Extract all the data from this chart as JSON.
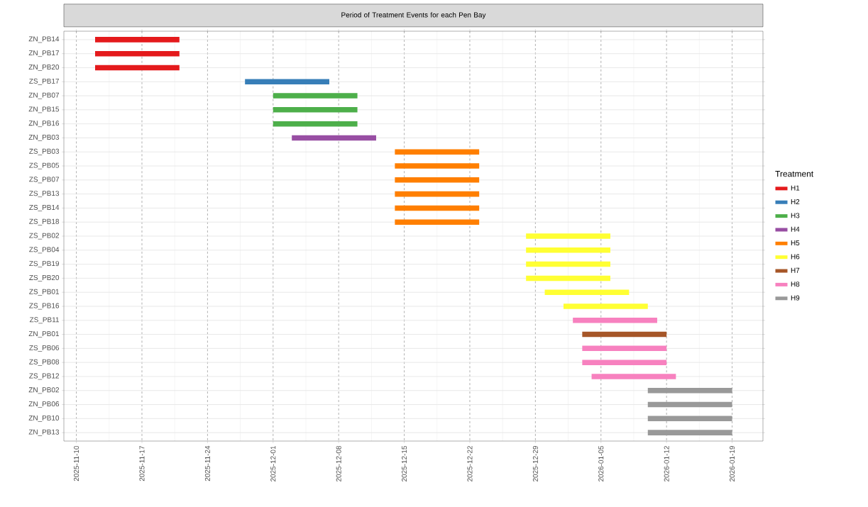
{
  "chart_data": {
    "type": "bar",
    "orientation": "horizontal",
    "title": "Period of Treatment Events for each Pen Bay",
    "legend_title": "Treatment",
    "legend": "right",
    "grid": true,
    "categories": [
      "ZN_PB14",
      "ZN_PB17",
      "ZN_PB20",
      "ZS_PB17",
      "ZN_PB07",
      "ZN_PB15",
      "ZN_PB16",
      "ZN_PB03",
      "ZS_PB03",
      "ZS_PB05",
      "ZS_PB07",
      "ZS_PB13",
      "ZS_PB14",
      "ZS_PB18",
      "ZS_PB02",
      "ZS_PB04",
      "ZS_PB19",
      "ZS_PB20",
      "ZS_PB01",
      "ZS_PB16",
      "ZS_PB11",
      "ZN_PB01",
      "ZS_PB06",
      "ZS_PB08",
      "ZS_PB12",
      "ZN_PB02",
      "ZN_PB06",
      "ZN_PB10",
      "ZN_PB13"
    ],
    "xlim": [
      "2025-11-08T16:00",
      "2026-01-22T07:00"
    ],
    "xticks": [
      "2025-11-10",
      "2025-11-17",
      "2025-11-24",
      "2025-12-01",
      "2025-12-08",
      "2025-12-15",
      "2025-12-22",
      "2025-12-29",
      "2026-01-05",
      "2026-01-12",
      "2026-01-19"
    ],
    "series": [
      {
        "name": "H1",
        "color": "#e41a1c",
        "values": [
          9,
          9,
          9,
          null,
          null,
          null,
          null,
          null,
          null,
          null,
          null,
          null,
          null,
          null,
          null,
          null,
          null,
          null,
          null,
          null,
          null,
          null,
          null,
          null,
          null,
          null,
          null,
          null,
          null
        ],
        "base": [
          20404,
          20404,
          20404,
          null,
          null,
          null,
          null,
          null,
          null,
          null,
          null,
          null,
          null,
          null,
          null,
          null,
          null,
          null,
          null,
          null,
          null,
          null,
          null,
          null,
          null,
          null,
          null,
          null,
          null
        ]
      },
      {
        "name": "H2",
        "color": "#377eb8",
        "values": [
          null,
          null,
          null,
          9,
          null,
          null,
          null,
          null,
          null,
          null,
          null,
          null,
          null,
          null,
          null,
          null,
          null,
          null,
          null,
          null,
          null,
          null,
          null,
          null,
          null,
          null,
          null,
          null,
          null
        ],
        "base": [
          null,
          null,
          null,
          20420,
          null,
          null,
          null,
          null,
          null,
          null,
          null,
          null,
          null,
          null,
          null,
          null,
          null,
          null,
          null,
          null,
          null,
          null,
          null,
          null,
          null,
          null,
          null,
          null,
          null
        ]
      },
      {
        "name": "H3",
        "color": "#4daf4a",
        "values": [
          null,
          null,
          null,
          null,
          9,
          9,
          9,
          null,
          null,
          null,
          null,
          null,
          null,
          null,
          null,
          null,
          null,
          null,
          null,
          null,
          null,
          null,
          null,
          null,
          null,
          null,
          null,
          null,
          null
        ],
        "base": [
          null,
          null,
          null,
          null,
          20423,
          20423,
          20423,
          null,
          null,
          null,
          null,
          null,
          null,
          null,
          null,
          null,
          null,
          null,
          null,
          null,
          null,
          null,
          null,
          null,
          null,
          null,
          null,
          null,
          null
        ]
      },
      {
        "name": "H4",
        "color": "#984ea3",
        "values": [
          null,
          null,
          null,
          null,
          null,
          null,
          null,
          9,
          null,
          null,
          null,
          null,
          null,
          null,
          null,
          null,
          null,
          null,
          null,
          null,
          null,
          null,
          null,
          null,
          null,
          null,
          null,
          null,
          null
        ],
        "base": [
          null,
          null,
          null,
          null,
          null,
          null,
          null,
          20425,
          null,
          null,
          null,
          null,
          null,
          null,
          null,
          null,
          null,
          null,
          null,
          null,
          null,
          null,
          null,
          null,
          null,
          null,
          null,
          null,
          null
        ]
      },
      {
        "name": "H5",
        "color": "#ff7f00",
        "values": [
          null,
          null,
          null,
          null,
          null,
          null,
          null,
          null,
          9,
          9,
          9,
          9,
          9,
          9,
          null,
          null,
          null,
          null,
          null,
          null,
          null,
          null,
          null,
          null,
          null,
          null,
          null,
          null,
          null
        ],
        "base": [
          null,
          null,
          null,
          null,
          null,
          null,
          null,
          null,
          20436,
          20436,
          20436,
          20436,
          20436,
          20436,
          null,
          null,
          null,
          null,
          null,
          null,
          null,
          null,
          null,
          null,
          null,
          null,
          null,
          null,
          null
        ]
      },
      {
        "name": "H6",
        "color": "#ffff33",
        "values": [
          null,
          null,
          null,
          null,
          null,
          null,
          null,
          null,
          null,
          null,
          null,
          null,
          null,
          null,
          9,
          9,
          9,
          9,
          9,
          9,
          null,
          null,
          null,
          null,
          null,
          null,
          null,
          null,
          null
        ],
        "base": [
          null,
          null,
          null,
          null,
          null,
          null,
          null,
          null,
          null,
          null,
          null,
          null,
          null,
          null,
          20450,
          20450,
          20450,
          20450,
          20452,
          20454,
          null,
          null,
          null,
          null,
          null,
          null,
          null,
          null,
          null
        ]
      },
      {
        "name": "H7",
        "color": "#a65628",
        "values": [
          null,
          null,
          null,
          null,
          null,
          null,
          null,
          null,
          null,
          null,
          null,
          null,
          null,
          null,
          null,
          null,
          null,
          null,
          null,
          null,
          null,
          9,
          null,
          null,
          null,
          null,
          null,
          null,
          null
        ],
        "base": [
          null,
          null,
          null,
          null,
          null,
          null,
          null,
          null,
          null,
          null,
          null,
          null,
          null,
          null,
          null,
          null,
          null,
          null,
          null,
          null,
          null,
          20456,
          null,
          null,
          null,
          null,
          null,
          null,
          null
        ]
      },
      {
        "name": "H8",
        "color": "#f781bf",
        "values": [
          null,
          null,
          null,
          null,
          null,
          null,
          null,
          null,
          null,
          null,
          null,
          null,
          null,
          null,
          null,
          null,
          null,
          null,
          null,
          null,
          9,
          null,
          9,
          9,
          9,
          null,
          null,
          null,
          null
        ],
        "base": [
          null,
          null,
          null,
          null,
          null,
          null,
          null,
          null,
          null,
          null,
          null,
          null,
          null,
          null,
          null,
          null,
          null,
          null,
          null,
          null,
          20455,
          null,
          20456,
          20456,
          20457,
          null,
          null,
          null,
          null
        ]
      },
      {
        "name": "H9",
        "color": "#999999",
        "values": [
          null,
          null,
          null,
          null,
          null,
          null,
          null,
          null,
          null,
          null,
          null,
          null,
          null,
          null,
          null,
          null,
          null,
          null,
          null,
          null,
          null,
          null,
          null,
          null,
          null,
          9,
          9,
          9,
          9
        ],
        "base": [
          null,
          null,
          null,
          null,
          null,
          null,
          null,
          null,
          null,
          null,
          null,
          null,
          null,
          null,
          null,
          null,
          null,
          null,
          null,
          null,
          null,
          null,
          null,
          null,
          null,
          20463,
          20463,
          20463,
          20463
        ]
      }
    ]
  }
}
